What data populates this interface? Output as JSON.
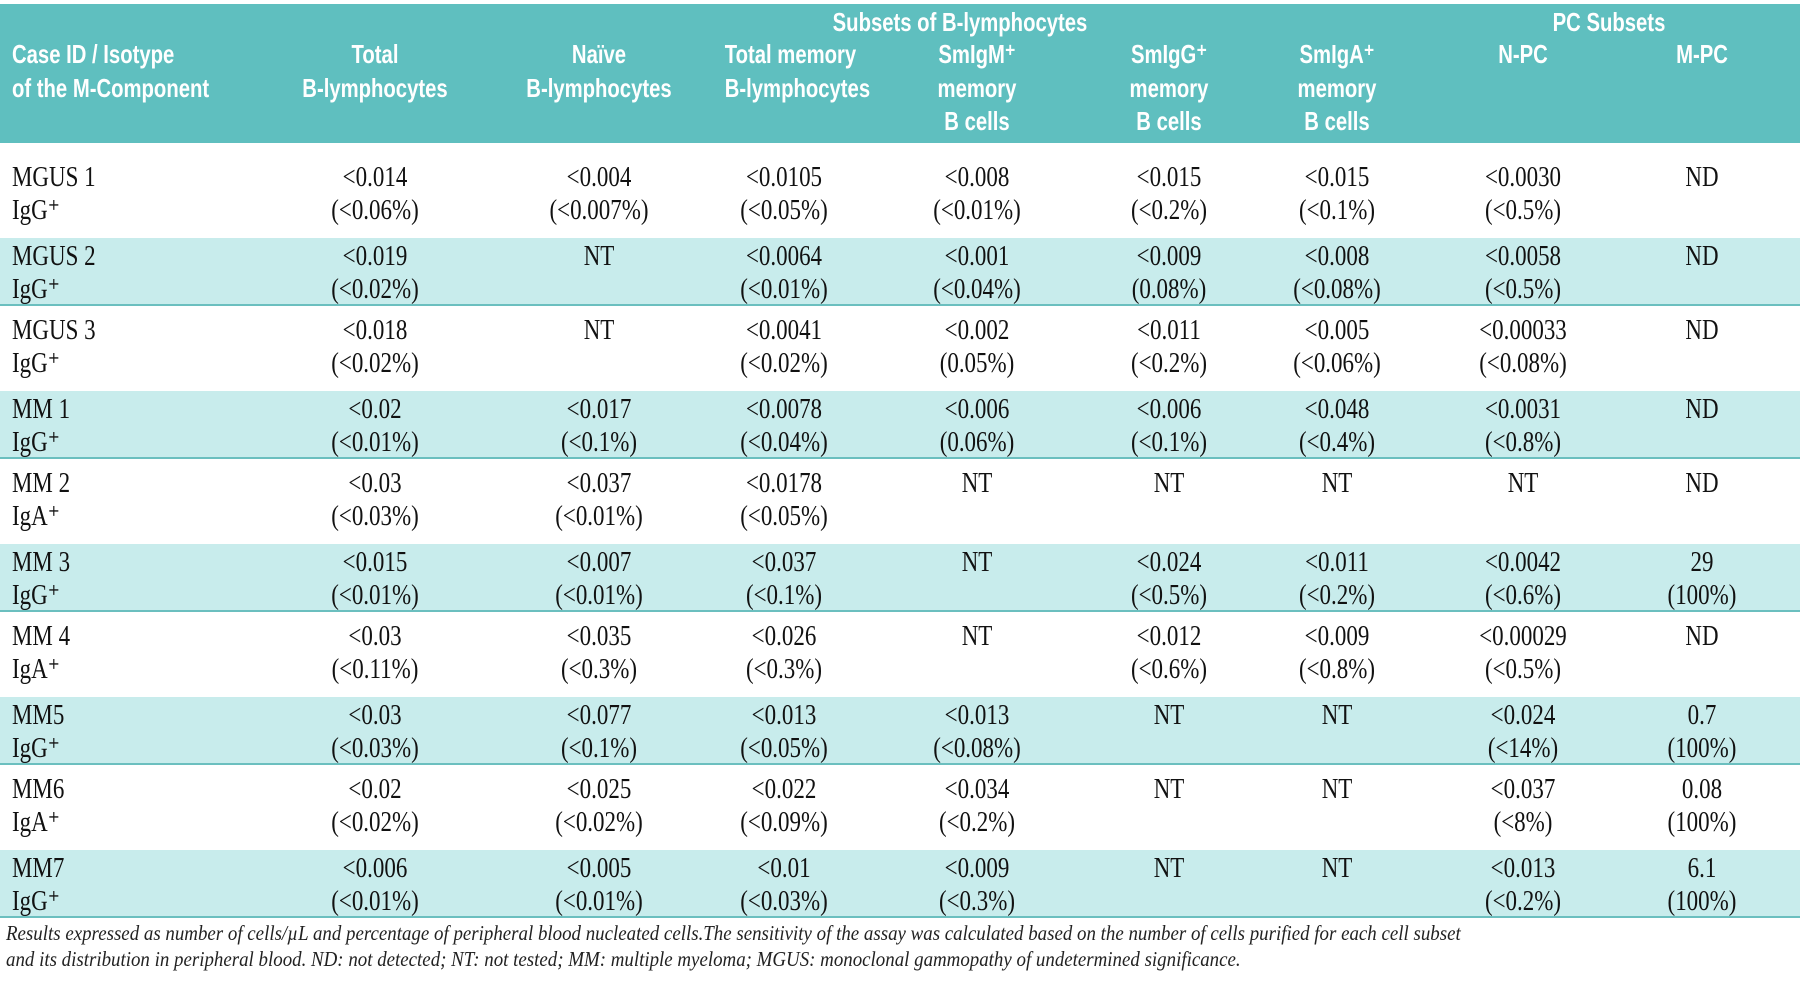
{
  "header": {
    "group_b": "Subsets of B-lymphocytes",
    "group_pc": "PC Subsets",
    "columns": [
      [
        "Case ID  / Isotype",
        "of the M-Component"
      ],
      [
        "Total",
        "B-lymphocytes"
      ],
      [
        "Naïve",
        "B-lymphocytes"
      ],
      [
        "Total memory",
        "B-lymphocytes"
      ],
      [
        "SmIgM⁺",
        "memory",
        "B cells"
      ],
      [
        "SmIgG⁺",
        "memory",
        "B cells"
      ],
      [
        "SmIgA⁺",
        "memory",
        "B cells"
      ],
      [
        "N-PC"
      ],
      [
        "M-PC"
      ]
    ]
  },
  "rows": [
    {
      "case": [
        "MGUS 1",
        "IgG⁺"
      ],
      "cells": [
        [
          "<0.014",
          "(<0.06%)"
        ],
        [
          "<0.004",
          "(<0.007%)"
        ],
        [
          "<0.0105",
          "(<0.05%)"
        ],
        [
          "<0.008",
          "(<0.01%)"
        ],
        [
          "<0.015",
          "(<0.2%)"
        ],
        [
          "<0.015",
          "(<0.1%)"
        ],
        [
          "<0.0030",
          "(<0.5%)"
        ],
        [
          "ND"
        ]
      ]
    },
    {
      "case": [
        "MGUS 2",
        "IgG⁺"
      ],
      "cells": [
        [
          "<0.019",
          "(<0.02%)"
        ],
        [
          "NT"
        ],
        [
          "<0.0064",
          "(<0.01%)"
        ],
        [
          "<0.001",
          "(<0.04%)"
        ],
        [
          "<0.009",
          "(0.08%)"
        ],
        [
          "<0.008",
          "(<0.08%)"
        ],
        [
          "<0.0058",
          "(<0.5%)"
        ],
        [
          "ND"
        ]
      ]
    },
    {
      "case": [
        "MGUS 3",
        "IgG⁺"
      ],
      "cells": [
        [
          "<0.018",
          "(<0.02%)"
        ],
        [
          "NT"
        ],
        [
          "<0.0041",
          "(<0.02%)"
        ],
        [
          "<0.002",
          "(0.05%)"
        ],
        [
          "<0.011",
          "(<0.2%)"
        ],
        [
          "<0.005",
          "(<0.06%)"
        ],
        [
          "<0.00033",
          "(<0.08%)"
        ],
        [
          "ND"
        ]
      ]
    },
    {
      "case": [
        "MM 1",
        "IgG⁺"
      ],
      "cells": [
        [
          "<0.02",
          "(<0.01%)"
        ],
        [
          "<0.017",
          "(<0.1%)"
        ],
        [
          "<0.0078",
          "(<0.04%)"
        ],
        [
          "<0.006",
          "(0.06%)"
        ],
        [
          "<0.006",
          "(<0.1%)"
        ],
        [
          "<0.048",
          "(<0.4%)"
        ],
        [
          "<0.0031",
          "(<0.8%)"
        ],
        [
          "ND"
        ]
      ]
    },
    {
      "case": [
        "MM 2",
        "IgA⁺"
      ],
      "cells": [
        [
          "<0.03",
          "(<0.03%)"
        ],
        [
          "<0.037",
          "(<0.01%)"
        ],
        [
          "<0.0178",
          "(<0.05%)"
        ],
        [
          "NT"
        ],
        [
          "NT"
        ],
        [
          "NT"
        ],
        [
          "NT"
        ],
        [
          "ND"
        ]
      ]
    },
    {
      "case": [
        "MM 3",
        "IgG⁺"
      ],
      "cells": [
        [
          "<0.015",
          "(<0.01%)"
        ],
        [
          "<0.007",
          "(<0.01%)"
        ],
        [
          "<0.037",
          "(<0.1%)"
        ],
        [
          "NT"
        ],
        [
          "<0.024",
          "(<0.5%)"
        ],
        [
          "<0.011",
          "(<0.2%)"
        ],
        [
          "<0.0042",
          "(<0.6%)"
        ],
        [
          "29",
          "(100%)"
        ]
      ]
    },
    {
      "case": [
        "MM 4",
        "IgA⁺"
      ],
      "cells": [
        [
          "<0.03",
          "(<0.11%)"
        ],
        [
          "<0.035",
          "(<0.3%)"
        ],
        [
          "<0.026",
          "(<0.3%)"
        ],
        [
          "NT"
        ],
        [
          "<0.012",
          "(<0.6%)"
        ],
        [
          "<0.009",
          "(<0.8%)"
        ],
        [
          "<0.00029",
          "(<0.5%)"
        ],
        [
          "ND"
        ]
      ]
    },
    {
      "case": [
        "MM5",
        "IgG⁺"
      ],
      "cells": [
        [
          "<0.03",
          "(<0.03%)"
        ],
        [
          "<0.077",
          "(<0.1%)"
        ],
        [
          "<0.013",
          "(<0.05%)"
        ],
        [
          "<0.013",
          "(<0.08%)"
        ],
        [
          "NT"
        ],
        [
          "NT"
        ],
        [
          "<0.024",
          "(<14%)"
        ],
        [
          "0.7",
          "(100%)"
        ]
      ]
    },
    {
      "case": [
        "MM6",
        "IgA⁺"
      ],
      "cells": [
        [
          "<0.02",
          "(<0.02%)"
        ],
        [
          "<0.025",
          "(<0.02%)"
        ],
        [
          "<0.022",
          "(<0.09%)"
        ],
        [
          "<0.034",
          "(<0.2%)"
        ],
        [
          "NT"
        ],
        [
          "NT"
        ],
        [
          "<0.037",
          "(<8%)"
        ],
        [
          "0.08",
          "(100%)"
        ]
      ]
    },
    {
      "case": [
        "MM7",
        "IgG⁺"
      ],
      "cells": [
        [
          "<0.006",
          "(<0.01%)"
        ],
        [
          "<0.005",
          "(<0.01%)"
        ],
        [
          "<0.01",
          "(<0.03%)"
        ],
        [
          "<0.009",
          "(<0.3%)"
        ],
        [
          "NT"
        ],
        [
          "NT"
        ],
        [
          "<0.013",
          "(<0.2%)"
        ],
        [
          "6.1",
          "(100%)"
        ]
      ]
    }
  ],
  "footnote": [
    "Results expressed as number of cells/µL and percentage of peripheral blood nucleated cells.The sensitivity of the assay was calculated based on the number of cells purified for each cell subset",
    "and its distribution in peripheral blood. ND: not detected; NT: not tested; MM: multiple myeloma; MGUS: monoclonal gammopathy of undetermined significance."
  ],
  "colors": {
    "header_bg": "#5fbfbf",
    "shaded_row": "#c8ecec",
    "rule": "#6bbfbf"
  }
}
